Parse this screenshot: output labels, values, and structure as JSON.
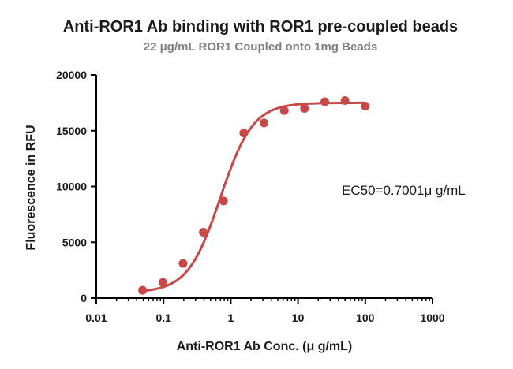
{
  "chart_data": {
    "type": "scatter",
    "title": "Anti-ROR1 Ab binding with ROR1 pre-coupled beads",
    "subtitle": "22 μg/mL ROR1 Coupled onto 1mg Beads",
    "xlabel": "Anti-ROR1 Ab Conc. (μ g/mL)",
    "ylabel": "Fluorescence in RFU",
    "x_scale": "log",
    "xlim": [
      0.01,
      1000
    ],
    "ylim": [
      0,
      20000
    ],
    "x_ticks": [
      0.01,
      0.1,
      1,
      10,
      100,
      1000
    ],
    "x_tick_labels": [
      "0.01",
      "0.1",
      "1",
      "10",
      "100",
      "1000"
    ],
    "y_ticks": [
      0,
      5000,
      10000,
      15000,
      20000
    ],
    "y_tick_labels": [
      "0",
      "5000",
      "10000",
      "15000",
      "20000"
    ],
    "grid": false,
    "series": [
      {
        "color": "#c84848",
        "x": [
          0.0488,
          0.0977,
          0.195,
          0.39,
          0.78,
          1.56,
          3.125,
          6.25,
          12.5,
          25,
          50,
          100
        ],
        "y": [
          700,
          1400,
          3100,
          5900,
          8700,
          14800,
          15700,
          16800,
          17000,
          17600,
          17700,
          17200
        ]
      }
    ],
    "fit_curve": {
      "model": "4PL",
      "color": "#c84848",
      "bottom": 500,
      "top": 17500,
      "ec50": 0.7001,
      "hill": 1.8
    },
    "annotations": [
      {
        "text": "EC50=0.7001μ g/mL"
      }
    ]
  }
}
